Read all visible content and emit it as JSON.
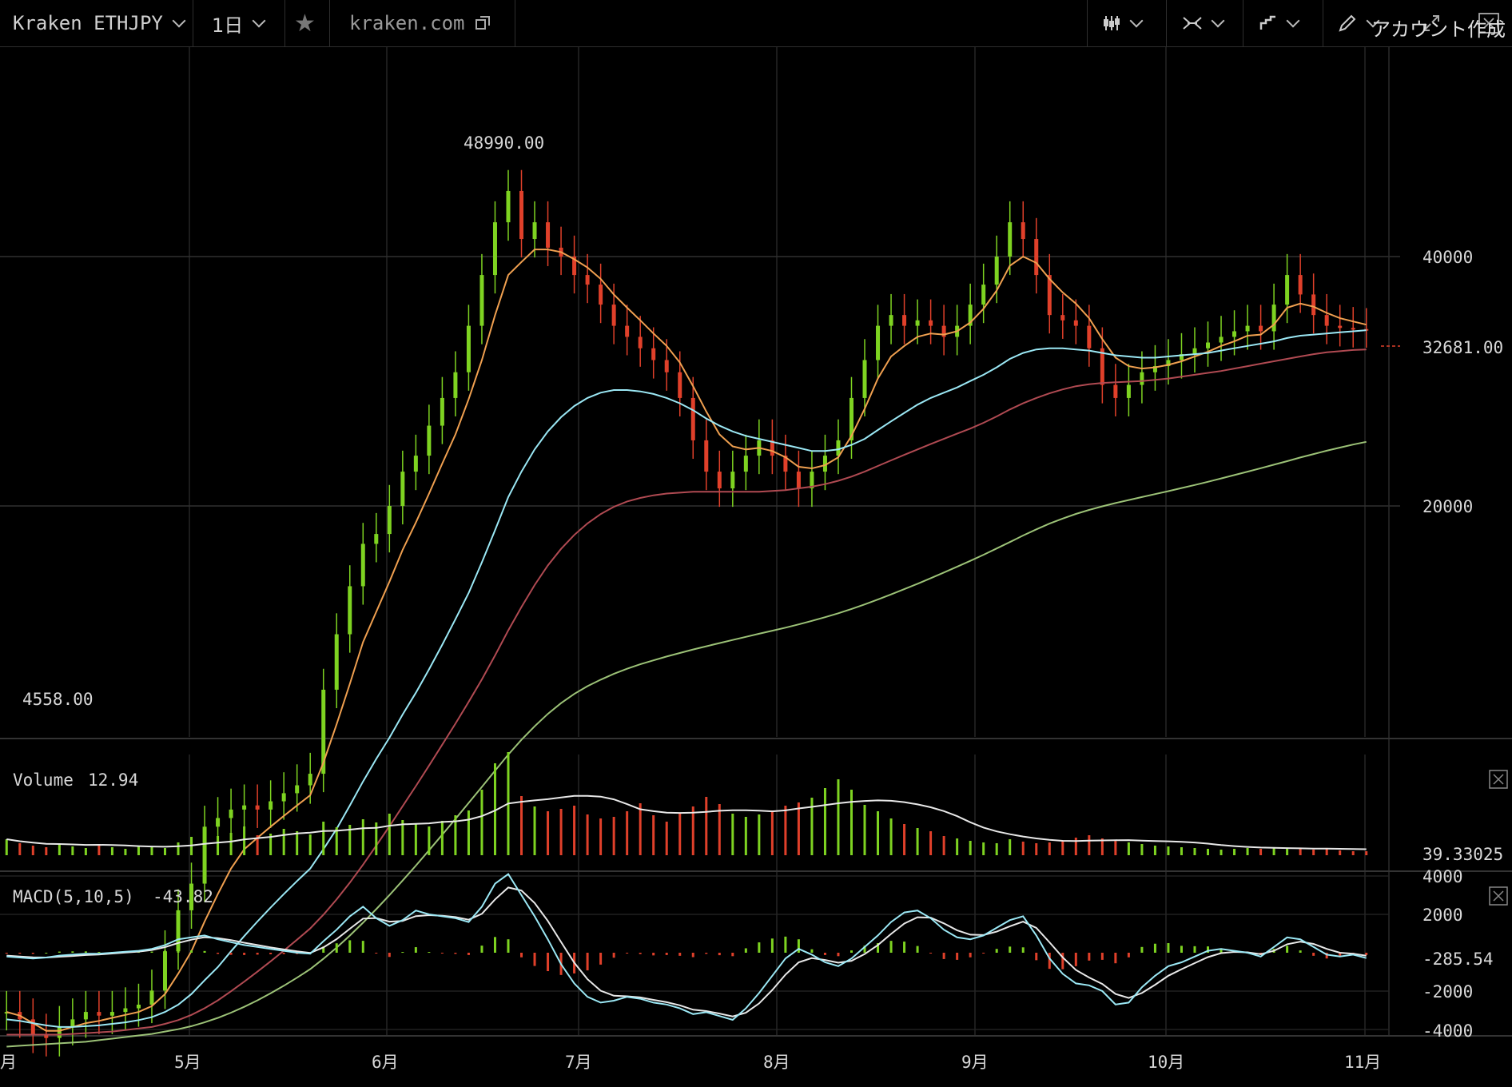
{
  "toolbar": {
    "symbol": "Kraken ETHJPY",
    "interval": "1日",
    "source": "kraken.com",
    "account": "アカウント作成",
    "icons": [
      "star-icon",
      "external-link-icon",
      "candles-icon",
      "indicators-icon",
      "compare-icon",
      "pencil-icon",
      "fullscreen-icon",
      "close-icon"
    ]
  },
  "chart_data": {
    "type": "line",
    "title": "",
    "x_ticks": [
      "月",
      "5月",
      "6月",
      "7月",
      "8月",
      "9月",
      "10月",
      "11月"
    ],
    "price_axis": {
      "scale": "log",
      "ticks": [
        "40000",
        "20000"
      ],
      "last_price": "32681.00"
    },
    "annotations": {
      "high": "48990.00",
      "low": "4558.00"
    },
    "colors": {
      "up": "#7ed321",
      "down": "#e0402a",
      "ema_fast": "#f0a050",
      "ema_slow": "#9be8f5",
      "ma_mid": "#b04a52",
      "ma_long": "#9cc277",
      "ma_very_long": "#6f7fc8"
    },
    "series": [
      {
        "values": [
          4900,
          4800,
          4600,
          4558,
          4700,
          4800,
          4900,
          4850,
          4900,
          4950,
          5000,
          5200,
          5800,
          6500,
          7000,
          8200,
          8400,
          8600,
          8700,
          8600,
          8800,
          9000,
          9200,
          9500,
          12000,
          14000,
          16000,
          18000,
          18500,
          20000,
          22000,
          23000,
          25000,
          27000,
          29000,
          33000,
          38000,
          44000,
          48000,
          42000,
          44000,
          41000,
          40000,
          38000,
          37000,
          35000,
          33000,
          32000,
          31000,
          30000,
          29000,
          27000,
          24000,
          22000,
          21000,
          22000,
          23000,
          24000,
          23000,
          22000,
          21000,
          22000,
          23000,
          24000,
          27000,
          30000,
          33000,
          34000,
          33000,
          33500,
          33000,
          32000,
          33000,
          35000,
          37000,
          40000,
          44000,
          42000,
          38000,
          34000,
          33500,
          33000,
          31000,
          28000,
          27000,
          28000,
          29000,
          29500,
          30000,
          30500,
          31000,
          31500,
          32000,
          32500,
          33000,
          32500,
          35000,
          38000,
          36000,
          34000,
          33000,
          32800,
          32700,
          32681
        ]
      },
      {
        "values": [
          4900,
          4850,
          4750,
          4650,
          4650,
          4700,
          4750,
          4780,
          4820,
          4860,
          4900,
          4980,
          5150,
          5450,
          5800,
          6300,
          6800,
          7300,
          7700,
          7950,
          8200,
          8450,
          8700,
          8950,
          9800,
          10900,
          12200,
          13700,
          14900,
          16200,
          17700,
          19100,
          20700,
          22500,
          24400,
          26900,
          30000,
          34000,
          38000,
          39400,
          40800,
          40800,
          40500,
          39700,
          38800,
          37600,
          36000,
          34700,
          33500,
          32300,
          31200,
          29800,
          27900,
          26000,
          24400,
          23600,
          23400,
          23500,
          23300,
          22900,
          22300,
          22200,
          22400,
          22900,
          24300,
          26200,
          28500,
          30300,
          31200,
          32000,
          32300,
          32200,
          32500,
          33300,
          34600,
          36400,
          39000,
          40000,
          39300,
          37600,
          36200,
          35100,
          33700,
          31800,
          30200,
          29500,
          29300,
          29400,
          29600,
          29900,
          30300,
          30700,
          31200,
          31600,
          32100,
          32200,
          33100,
          34700,
          35100,
          34800,
          34200,
          33700,
          33400,
          33100
        ]
      },
      {
        "values": [
          4800,
          4780,
          4750,
          4720,
          4700,
          4700,
          4710,
          4720,
          4740,
          4760,
          4790,
          4830,
          4900,
          5000,
          5150,
          5350,
          5550,
          5800,
          6050,
          6300,
          6550,
          6800,
          7050,
          7300,
          7700,
          8150,
          8700,
          9300,
          9900,
          10500,
          11200,
          11900,
          12700,
          13600,
          14600,
          15700,
          17100,
          18700,
          20500,
          22000,
          23400,
          24600,
          25600,
          26400,
          27000,
          27400,
          27600,
          27600,
          27500,
          27300,
          27000,
          26600,
          26100,
          25500,
          25000,
          24600,
          24300,
          24100,
          23900,
          23700,
          23500,
          23300,
          23300,
          23400,
          23700,
          24100,
          24700,
          25300,
          25900,
          26500,
          27000,
          27400,
          27800,
          28300,
          28800,
          29400,
          30100,
          30600,
          30900,
          31000,
          31000,
          30900,
          30800,
          30600,
          30400,
          30300,
          30200,
          30200,
          30300,
          30400,
          30500,
          30600,
          30800,
          31000,
          31200,
          31400,
          31600,
          31900,
          32100,
          32200,
          32300,
          32400,
          32500,
          32600
        ]
      },
      {
        "values": [
          4600,
          4600,
          4600,
          4600,
          4600,
          4610,
          4620,
          4630,
          4640,
          4660,
          4680,
          4700,
          4740,
          4790,
          4860,
          4950,
          5060,
          5190,
          5330,
          5480,
          5640,
          5810,
          5990,
          6180,
          6420,
          6700,
          7020,
          7380,
          7780,
          8210,
          8680,
          9180,
          9720,
          10300,
          10920,
          11600,
          12350,
          13200,
          14150,
          15100,
          16050,
          16950,
          17750,
          18450,
          19050,
          19550,
          19950,
          20250,
          20450,
          20600,
          20700,
          20750,
          20800,
          20800,
          20800,
          20800,
          20800,
          20800,
          20850,
          20900,
          21000,
          21100,
          21250,
          21450,
          21700,
          22000,
          22350,
          22700,
          23050,
          23400,
          23750,
          24100,
          24450,
          24800,
          25200,
          25650,
          26150,
          26600,
          27000,
          27350,
          27650,
          27900,
          28050,
          28150,
          28200,
          28250,
          28300,
          28400,
          28500,
          28650,
          28800,
          28950,
          29100,
          29300,
          29500,
          29700,
          29900,
          30100,
          30300,
          30500,
          30650,
          30750,
          30850,
          30900
        ]
      },
      {
        "values": [
          4450,
          4460,
          4470,
          4480,
          4490,
          4500,
          4510,
          4530,
          4550,
          4570,
          4590,
          4610,
          4640,
          4670,
          4710,
          4760,
          4820,
          4890,
          4970,
          5060,
          5160,
          5270,
          5390,
          5520,
          5680,
          5860,
          6060,
          6280,
          6520,
          6780,
          7060,
          7360,
          7680,
          8020,
          8380,
          8760,
          9160,
          9580,
          10020,
          10440,
          10840,
          11220,
          11560,
          11860,
          12120,
          12340,
          12540,
          12720,
          12880,
          13020,
          13160,
          13290,
          13420,
          13540,
          13660,
          13780,
          13900,
          14020,
          14140,
          14260,
          14390,
          14530,
          14680,
          14840,
          15020,
          15210,
          15420,
          15640,
          15870,
          16110,
          16360,
          16620,
          16890,
          17170,
          17460,
          17770,
          18090,
          18420,
          18740,
          19040,
          19310,
          19560,
          19780,
          19980,
          20160,
          20330,
          20500,
          20670,
          20840,
          21020,
          21200,
          21390,
          21590,
          21790,
          22000,
          22210,
          22430,
          22650,
          22880,
          23100,
          23320,
          23520,
          23720,
          23900
        ]
      }
    ],
    "volume": {
      "label": "Volume",
      "value": "12.94",
      "axis_last": "39.33025",
      "values": [
        2,
        1.5,
        1.2,
        1,
        1.3,
        1.1,
        0.9,
        1.4,
        1,
        0.8,
        1.2,
        1,
        0.9,
        1.6,
        2.3,
        3.1,
        2.4,
        2.8,
        3.6,
        2.5,
        2.7,
        3.3,
        3,
        2.6,
        4.2,
        3.5,
        3.8,
        4.5,
        4.1,
        5.2,
        4.4,
        4,
        3.6,
        4.3,
        5,
        5.6,
        8.2,
        11.5,
        12.9,
        7.4,
        6.1,
        5.5,
        5.8,
        6.2,
        5.1,
        4.6,
        4.8,
        5.5,
        6.5,
        5,
        4.2,
        5.2,
        6.1,
        7.3,
        6.4,
        5.2,
        4.8,
        5.1,
        5.6,
        6.2,
        6.6,
        7.2,
        8.4,
        9.5,
        8.2,
        6.3,
        5.5,
        4.6,
        3.9,
        3.4,
        3,
        2.4,
        2.1,
        1.8,
        1.6,
        1.5,
        2,
        1.7,
        1.5,
        1.6,
        1.8,
        2.2,
        2.5,
        2.1,
        1.9,
        1.6,
        1.4,
        1.2,
        1.1,
        1,
        0.9,
        0.8,
        0.7,
        0.8,
        0.9,
        0.8,
        1,
        0.9,
        0.8,
        0.7,
        0.8,
        0.6,
        0.5,
        0.5
      ]
    },
    "macd": {
      "label": "MACD(5,10,5)",
      "value": "-43.82",
      "ticks": [
        "4000",
        "2000",
        "-285.54",
        "-2000",
        "-4000"
      ],
      "ylim": [
        -4000,
        4000
      ],
      "line": [
        -200,
        -250,
        -300,
        -250,
        -150,
        -100,
        -50,
        -50,
        0,
        50,
        100,
        200,
        400,
        700,
        800,
        900,
        700,
        550,
        400,
        300,
        200,
        100,
        0,
        -50,
        600,
        1200,
        1900,
        2400,
        1800,
        1400,
        1700,
        2200,
        2000,
        1900,
        1800,
        1600,
        2400,
        3600,
        4100,
        3000,
        1900,
        700,
        -600,
        -1600,
        -2300,
        -2600,
        -2500,
        -2300,
        -2400,
        -2600,
        -2700,
        -2900,
        -3200,
        -3100,
        -3300,
        -3500,
        -2900,
        -2100,
        -1200,
        -300,
        200,
        -100,
        -500,
        -700,
        -300,
        300,
        900,
        1600,
        2100,
        2200,
        1800,
        1200,
        800,
        700,
        900,
        1300,
        1700,
        1900,
        900,
        -300,
        -1100,
        -1600,
        -1700,
        -2000,
        -2700,
        -2600,
        -1800,
        -1200,
        -700,
        -500,
        -200,
        100,
        200,
        100,
        0,
        -200,
        300,
        800,
        700,
        300,
        -100,
        -200,
        -100,
        -280
      ],
      "signal": [
        -150,
        -200,
        -240,
        -250,
        -210,
        -170,
        -120,
        -90,
        -40,
        10,
        60,
        140,
        290,
        510,
        680,
        810,
        760,
        660,
        520,
        400,
        280,
        170,
        70,
        -10,
        280,
        710,
        1250,
        1780,
        1810,
        1620,
        1660,
        1910,
        1960,
        1930,
        1860,
        1720,
        2030,
        2780,
        3400,
        3240,
        2590,
        1660,
        560,
        -520,
        -1380,
        -1980,
        -2240,
        -2270,
        -2330,
        -2460,
        -2580,
        -2740,
        -2970,
        -3040,
        -3170,
        -3320,
        -3130,
        -2640,
        -1940,
        -1140,
        -500,
        -280,
        -380,
        -520,
        -420,
        -70,
        400,
        980,
        1520,
        1850,
        1830,
        1530,
        1170,
        940,
        920,
        1100,
        1380,
        1620,
        1290,
        540,
        -240,
        -900,
        -1290,
        -1630,
        -2150,
        -2360,
        -2100,
        -1670,
        -1200,
        -860,
        -540,
        -230,
        -20,
        40,
        20,
        -80,
        100,
        440,
        580,
        460,
        200,
        0,
        -50,
        -160
      ]
    }
  }
}
